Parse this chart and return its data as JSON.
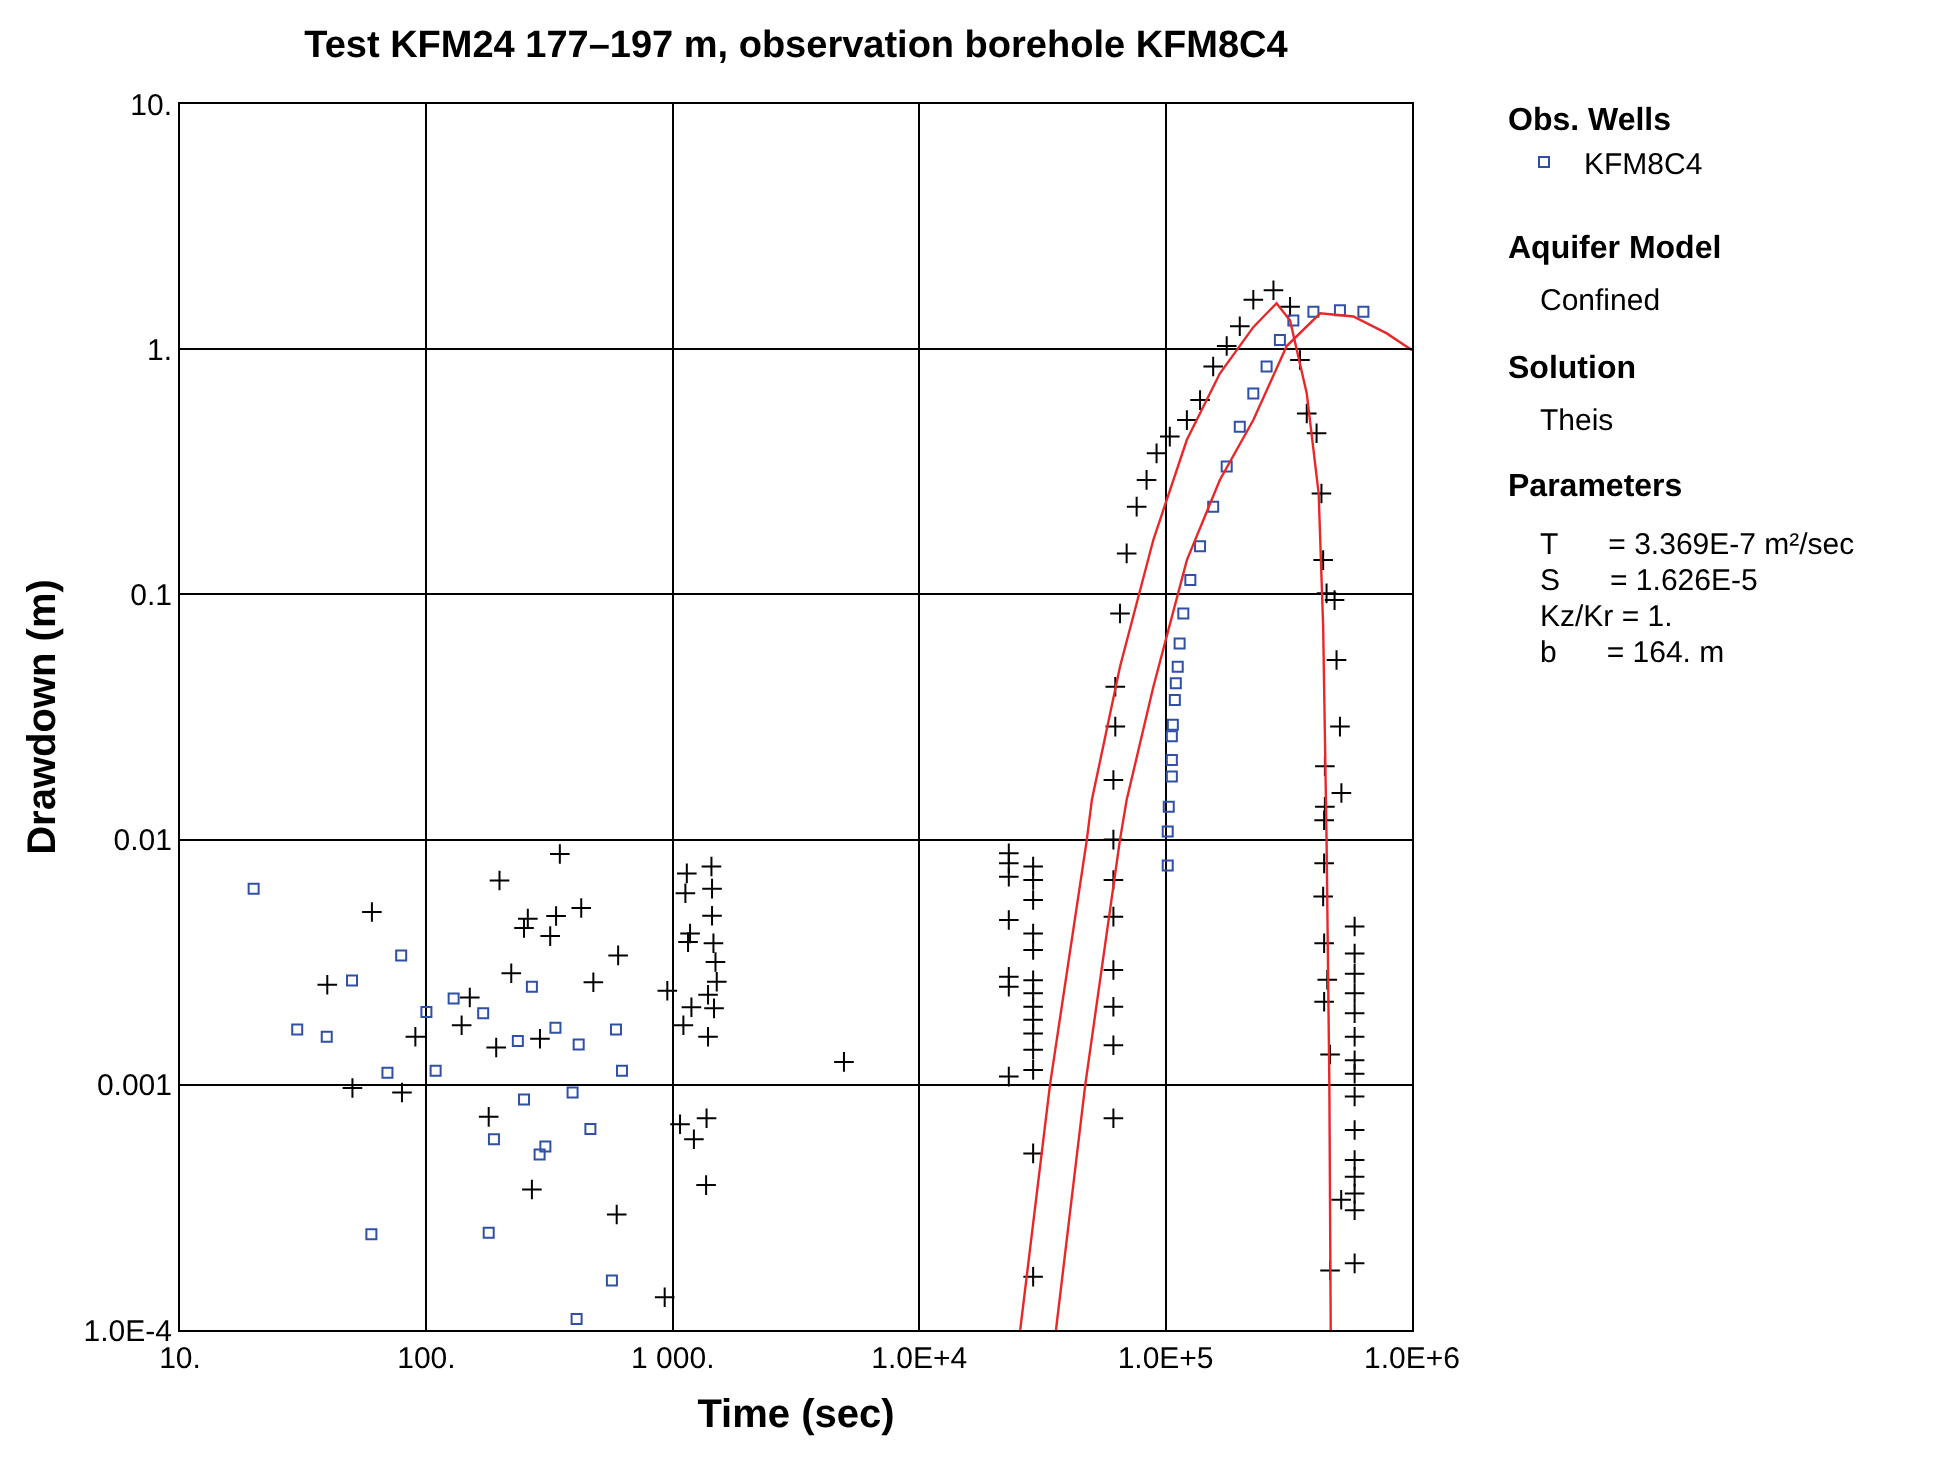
{
  "chart_data": {
    "type": "scatter",
    "title": "Test KFM24 177–197 m, observation borehole KFM8C4",
    "xlabel": "Time (sec)",
    "ylabel": "Drawdown (m)",
    "legend_title": "Obs. Wells",
    "legend": "top right",
    "log": "xy",
    "grid": true,
    "xlim": [
      10,
      1000000
    ],
    "ylim": [
      0.0001,
      10
    ],
    "xticks": [
      {
        "value": 10,
        "label": "10."
      },
      {
        "value": 100,
        "label": "100."
      },
      {
        "value": 1000,
        "label": "1 000."
      },
      {
        "value": 10000,
        "label": "1.0E+4"
      },
      {
        "value": 100000,
        "label": "1.0E+5"
      },
      {
        "value": 1000000,
        "label": "1.0E+6"
      }
    ],
    "yticks": [
      {
        "value": 0.0001,
        "label": "1.0E-4"
      },
      0.001,
      0.01,
      0.1,
      {
        "value": 1,
        "label": "1."
      },
      {
        "value": 10,
        "label": "10."
      }
    ],
    "annotations": [
      "Aquifer Model",
      "Confined",
      "Solution",
      "Theis",
      "Parameters",
      "T      = 3.369E-7 m²/sec",
      "S      = 1.626E-5",
      "Kz/Kr = 1.",
      "b      = 164. m"
    ],
    "series": [
      {
        "type": "scatter",
        "marker": "cross",
        "color": "#000000",
        "x": [
          60.1,
          39.6,
          90.2,
          50.1,
          79.6,
          198,
          348,
          425,
          258,
          249,
          336,
          318,
          600,
          221,
          476,
          150,
          139,
          192,
          289,
          950,
          179,
          268,
          592,
          927,
          1140,
          1435,
          1125,
          1443,
          1443,
          1175,
          1153,
          1462,
          1490,
          1508,
          1390,
          1190,
          1470,
          1104,
          1390,
          1070,
          1371,
          1218,
          1365,
          4950,
          23100,
          23100,
          23100,
          23100,
          23100,
          23100,
          23100,
          29000,
          29000,
          29000,
          29000,
          29000,
          29000,
          29000,
          29000,
          29000,
          29000,
          29000,
          29000,
          29000,
          29000,
          61400,
          61400,
          61400,
          61400,
          61400,
          61400,
          61400,
          61400,
          62500,
          62500,
          65300,
          69500,
          76300,
          83700,
          91900,
          104000,
          122000,
          138000,
          156000,
          177000,
          200000,
          227000,
          274000,
          320000,
          351000,
          374000,
          410000,
          429000,
          436000,
          450000,
          485000,
          494000,
          510000,
          517000,
          443000,
          440000,
          443000,
          440000,
          436000,
          440000,
          453000,
          440000,
          465000,
          465000,
          516000,
          585000,
          585000,
          585000,
          585000,
          585000,
          585000,
          585000,
          585000,
          585000,
          585000,
          585000,
          585000,
          585000,
          585000,
          585000
        ],
        "values": [
          0.00507,
          0.00256,
          0.00157,
          0.00097,
          0.00093,
          0.00681,
          0.00873,
          0.00526,
          0.00476,
          0.00436,
          0.00488,
          0.00404,
          0.00337,
          0.00285,
          0.00262,
          0.00227,
          0.00175,
          0.00142,
          0.00154,
          0.00242,
          0.00074,
          0.000374,
          0.000296,
          0.000136,
          0.00728,
          0.00777,
          0.00604,
          0.00631,
          0.00489,
          0.00414,
          0.00382,
          0.00378,
          0.00317,
          0.00263,
          0.00233,
          0.00207,
          0.00205,
          0.00175,
          0.00157,
          0.00069,
          0.00073,
          0.0006,
          0.00039,
          0.00124,
          0.0088,
          0.008,
          0.00706,
          0.0047,
          0.00276,
          0.00251,
          0.00108,
          0.00777,
          0.00684,
          0.00567,
          0.00414,
          0.00355,
          0.00267,
          0.00236,
          0.00208,
          0.00184,
          0.00162,
          0.00139,
          0.00115,
          0.000525,
          0.000165,
          0.01,
          0.00684,
          0.00485,
          0.00294,
          0.00208,
          0.00145,
          0.00073,
          0.0175,
          0.0289,
          0.042,
          0.0836,
          0.147,
          0.228,
          0.293,
          0.376,
          0.44,
          0.514,
          0.62,
          0.85,
          1.03,
          1.24,
          1.59,
          1.74,
          1.49,
          0.904,
          0.547,
          0.454,
          0.258,
          0.138,
          0.101,
          0.0948,
          0.054,
          0.0289,
          0.0155,
          0.0199,
          0.012,
          0.0136,
          0.008,
          0.00586,
          0.00378,
          0.00268,
          0.00218,
          0.00133,
          0.000175,
          0.00034,
          0.00442,
          0.00343,
          0.00284,
          0.00236,
          0.00196,
          0.00157,
          0.00126,
          0.00111,
          0.000896,
          0.000654,
          0.000493,
          0.000422,
          0.00036,
          0.000308,
          0.000187
        ]
      },
      {
        "type": "scatter",
        "marker": "square",
        "name": "KFM8C4",
        "color": "#3050a8",
        "x": [
          19.9,
          79,
          49.9,
          29.9,
          39.4,
          100,
          129,
          170,
          268,
          235,
          334,
          415,
          588,
          69.5,
          109,
          622,
          249,
          392,
          188,
          463,
          304,
          288,
          59.8,
          179,
          566,
          407,
          102000,
          102000,
          103000,
          106000,
          106000,
          106000,
          107000,
          109000,
          110000,
          112000,
          114000,
          118000,
          126000,
          138000,
          156000,
          177000,
          200000,
          227000,
          257000,
          291000,
          330000,
          398000,
          510000,
          635000
        ],
        "values": [
          0.0063,
          0.00337,
          0.00266,
          0.00168,
          0.00157,
          0.00198,
          0.00225,
          0.00196,
          0.00251,
          0.00151,
          0.00171,
          0.00146,
          0.00168,
          0.00112,
          0.00114,
          0.00114,
          0.00087,
          0.00093,
          0.0006,
          0.00066,
          0.00056,
          0.00052,
          0.000246,
          0.000249,
          0.000159,
          0.000111,
          0.00785,
          0.0108,
          0.0136,
          0.0181,
          0.0211,
          0.0264,
          0.0294,
          0.0371,
          0.0434,
          0.0507,
          0.063,
          0.0836,
          0.1145,
          0.157,
          0.228,
          0.332,
          0.483,
          0.66,
          0.85,
          1.09,
          1.31,
          1.42,
          1.44,
          1.42
        ]
      },
      {
        "type": "line",
        "marker": "none",
        "line_style": "solid",
        "color": "#e82828",
        "x": [
          25700,
          33950,
          47900,
          50200,
          65300,
          89200,
          122000,
          166000,
          227000,
          282000,
          320000,
          374000,
          418000,
          436000,
          450000,
          462000,
          468000
        ],
        "values": [
          0.0001,
          0.001,
          0.01,
          0.0145,
          0.0507,
          0.167,
          0.427,
          0.796,
          1.23,
          1.54,
          1.31,
          0.66,
          0.258,
          0.074,
          0.01,
          0.001,
          0.0001
        ]
      },
      {
        "type": "line",
        "marker": "none",
        "line_style": "solid",
        "color": "#e82828",
        "x": [
          35900,
          47200,
          65300,
          69500,
          89200,
          122000,
          166000,
          227000,
          310000,
          424000,
          578000,
          790000,
          1000000
        ],
        "values": [
          0.0001,
          0.001,
          0.01,
          0.0145,
          0.042,
          0.138,
          0.293,
          0.514,
          1.03,
          1.4,
          1.36,
          1.16,
          0.99
        ]
      }
    ]
  }
}
